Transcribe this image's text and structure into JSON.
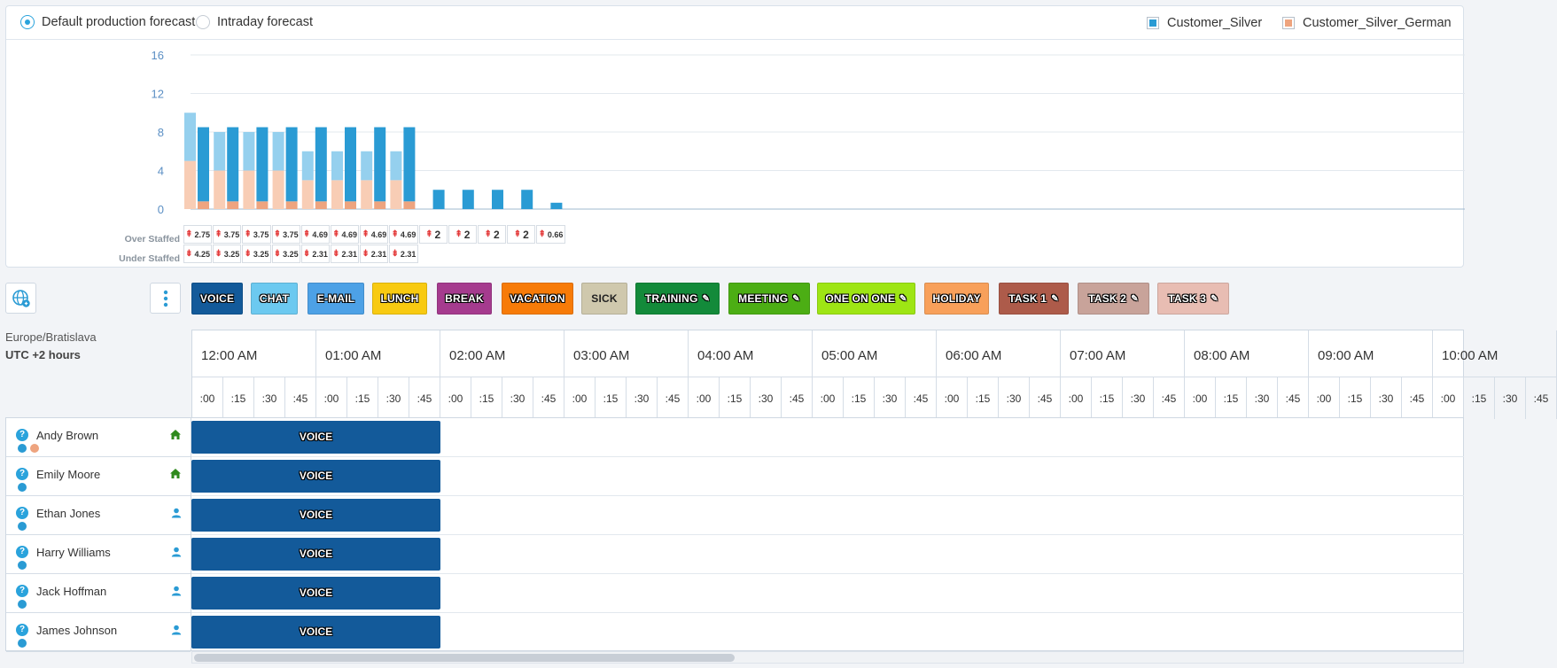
{
  "forecast_options": [
    {
      "label": "Default production forecast",
      "selected": true
    },
    {
      "label": "Intraday forecast",
      "selected": false
    }
  ],
  "legend": [
    {
      "label": "Customer_Silver",
      "color": "#2a9bd4"
    },
    {
      "label": "Customer_Silver_German",
      "color": "#eea47f"
    }
  ],
  "chart_data": {
    "type": "bar",
    "y_ticks": [
      "0",
      "4",
      "8",
      "12",
      "16"
    ],
    "ylim": [
      0,
      16
    ],
    "intervals": [
      {
        "forecast_silver": 5,
        "forecast_german": 5,
        "scheduled_silver": 7.7,
        "scheduled_german": 0.8
      },
      {
        "forecast_silver": 4,
        "forecast_german": 4,
        "scheduled_silver": 7.7,
        "scheduled_german": 0.8
      },
      {
        "forecast_silver": 4,
        "forecast_german": 4,
        "scheduled_silver": 7.7,
        "scheduled_german": 0.8
      },
      {
        "forecast_silver": 4,
        "forecast_german": 4,
        "scheduled_silver": 7.7,
        "scheduled_german": 0.8
      },
      {
        "forecast_silver": 3,
        "forecast_german": 3,
        "scheduled_silver": 7.7,
        "scheduled_german": 0.8
      },
      {
        "forecast_silver": 3,
        "forecast_german": 3,
        "scheduled_silver": 7.7,
        "scheduled_german": 0.8
      },
      {
        "forecast_silver": 3,
        "forecast_german": 3,
        "scheduled_silver": 7.7,
        "scheduled_german": 0.8
      },
      {
        "forecast_silver": 3,
        "forecast_german": 3,
        "scheduled_silver": 7.7,
        "scheduled_german": 0.8
      },
      {
        "forecast_silver": 0,
        "forecast_german": 0,
        "scheduled_silver": 2,
        "scheduled_german": 0
      },
      {
        "forecast_silver": 0,
        "forecast_german": 0,
        "scheduled_silver": 2,
        "scheduled_german": 0
      },
      {
        "forecast_silver": 0,
        "forecast_german": 0,
        "scheduled_silver": 2,
        "scheduled_german": 0
      },
      {
        "forecast_silver": 0,
        "forecast_german": 0,
        "scheduled_silver": 2,
        "scheduled_german": 0
      },
      {
        "forecast_silver": 0,
        "forecast_german": 0,
        "scheduled_silver": 0.66,
        "scheduled_german": 0
      }
    ],
    "over_staffed_label": "Over Staffed",
    "under_staffed_label": "Under Staffed",
    "over_staffed": [
      "2.75",
      "3.75",
      "3.75",
      "3.75",
      "4.69",
      "4.69",
      "4.69",
      "4.69",
      "2",
      "2",
      "2",
      "2",
      "0.66"
    ],
    "under_staffed": [
      "4.25",
      "3.25",
      "3.25",
      "3.25",
      "2.31",
      "2.31",
      "2.31",
      "2.31"
    ]
  },
  "activities": [
    {
      "label": "VOICE",
      "color": "#135a9a",
      "pinned": false
    },
    {
      "label": "CHAT",
      "color": "#6cc9f0",
      "pinned": false
    },
    {
      "label": "E-MAIL",
      "color": "#4da1e6",
      "pinned": false
    },
    {
      "label": "LUNCH",
      "color": "#f8ca11",
      "pinned": false
    },
    {
      "label": "BREAK",
      "color": "#a53b8e",
      "pinned": false
    },
    {
      "label": "VACATION",
      "color": "#f77b08",
      "pinned": false
    },
    {
      "label": "SICK",
      "color": "#cfc8ad",
      "pinned": false
    },
    {
      "label": "TRAINING",
      "color": "#138a3a",
      "pinned": true
    },
    {
      "label": "MEETING",
      "color": "#4cae14",
      "pinned": true
    },
    {
      "label": "ONE ON ONE",
      "color": "#9ee514",
      "pinned": true
    },
    {
      "label": "HOLIDAY",
      "color": "#f8a05a",
      "pinned": false
    },
    {
      "label": "TASK 1",
      "color": "#ad5b4a",
      "pinned": true
    },
    {
      "label": "TASK 2",
      "color": "#c8a39a",
      "pinned": true
    },
    {
      "label": "TASK 3",
      "color": "#e8bdb3",
      "pinned": true
    }
  ],
  "timezone": {
    "name": "Europe/Bratislava",
    "offset": "UTC +2 hours"
  },
  "hours": [
    "12:00 AM",
    "01:00 AM",
    "02:00 AM",
    "03:00 AM",
    "04:00 AM",
    "05:00 AM",
    "06:00 AM",
    "07:00 AM",
    "08:00 AM",
    "09:00 AM",
    "10:00 AM"
  ],
  "quarters": [
    ":00",
    ":15",
    ":30",
    ":45"
  ],
  "agents": [
    {
      "name": "Andy Brown",
      "location": "home",
      "extra_status": true,
      "shift": "VOICE"
    },
    {
      "name": "Emily Moore",
      "location": "home",
      "extra_status": false,
      "shift": "VOICE"
    },
    {
      "name": "Ethan Jones",
      "location": "user",
      "extra_status": false,
      "shift": "VOICE"
    },
    {
      "name": "Harry Williams",
      "location": "user",
      "extra_status": false,
      "shift": "VOICE"
    },
    {
      "name": "Jack Hoffman",
      "location": "user",
      "extra_status": false,
      "shift": "VOICE"
    },
    {
      "name": "James Johnson",
      "location": "user",
      "extra_status": false,
      "shift": "VOICE"
    }
  ]
}
